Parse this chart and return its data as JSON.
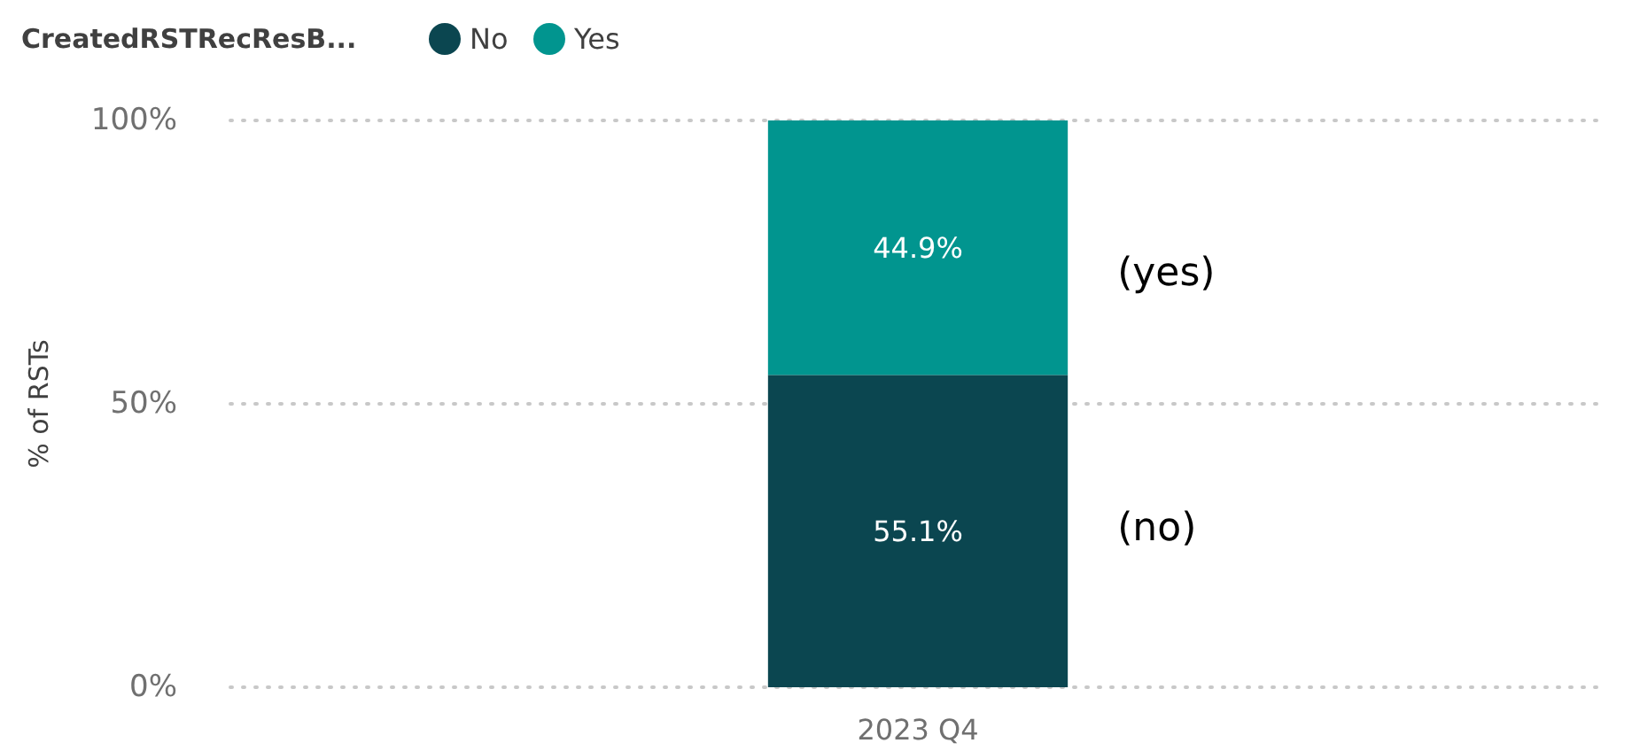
{
  "chart_data": {
    "type": "bar",
    "stacked": true,
    "legend_title": "CreatedRSTRecResB...",
    "legend": "top left",
    "ylabel": "% of RSTs",
    "categories": [
      "2023 Q4"
    ],
    "series": [
      {
        "name": "No",
        "color": "#0b4650",
        "values": [
          55.1
        ],
        "value_labels": [
          "55.1%"
        ]
      },
      {
        "name": "Yes",
        "color": "#01958f",
        "values": [
          44.9
        ],
        "value_labels": [
          "44.9%"
        ]
      }
    ],
    "ylim": [
      0,
      100
    ],
    "yticks": [
      {
        "value": 0,
        "label": "0%"
      },
      {
        "value": 50,
        "label": "50%"
      },
      {
        "value": 100,
        "label": "100%"
      }
    ],
    "grid": "y",
    "annotations": [
      "(yes)",
      "(no)"
    ]
  }
}
